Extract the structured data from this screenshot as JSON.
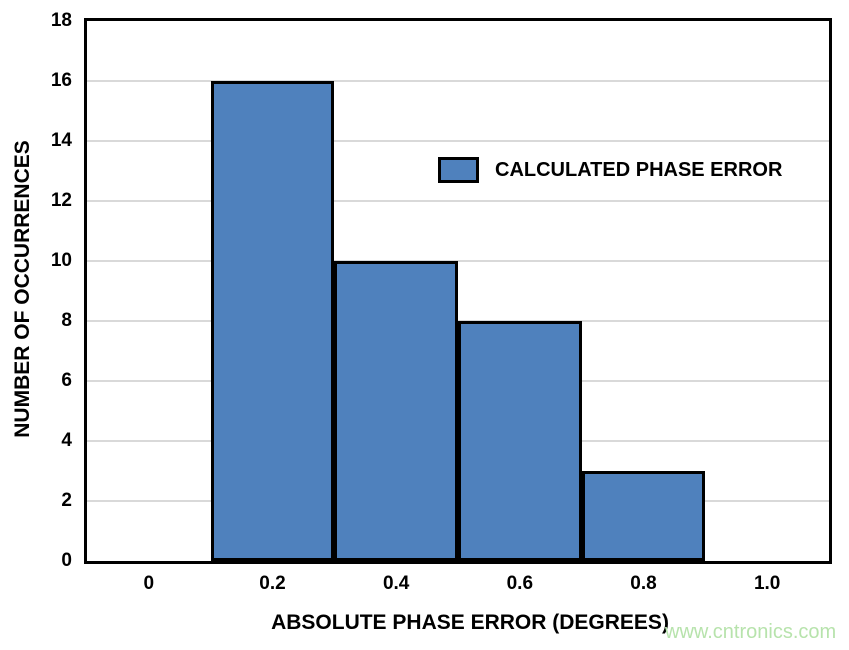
{
  "chart_data": {
    "type": "bar",
    "title": "",
    "categories": [
      "0",
      "0.2",
      "0.4",
      "0.6",
      "0.8",
      "1.0"
    ],
    "series": [
      {
        "name": "CALCULATED PHASE ERROR",
        "values": [
          0,
          16,
          10,
          8,
          3,
          0
        ],
        "color": "#4F81BD"
      }
    ],
    "xlabel": "ABSOLUTE PHASE ERROR (DEGREES)",
    "ylabel": "NUMBER OF OCCURRENCES",
    "ylim": [
      0,
      18
    ],
    "ytick_step": 2,
    "grid": true,
    "gridline_color": "#D9D9D9",
    "bar_border_color": "#000000",
    "bar_gap_percent": 0,
    "legend_position": "inside-upper-right",
    "axis_color": "#000000",
    "background_color": "#FFFFFF"
  },
  "legend": {
    "label": "CALCULATED PHASE ERROR",
    "swatch_color": "#4F81BD"
  },
  "watermark": {
    "text": "www.cntronics.com",
    "color": "#B7E3AC"
  }
}
